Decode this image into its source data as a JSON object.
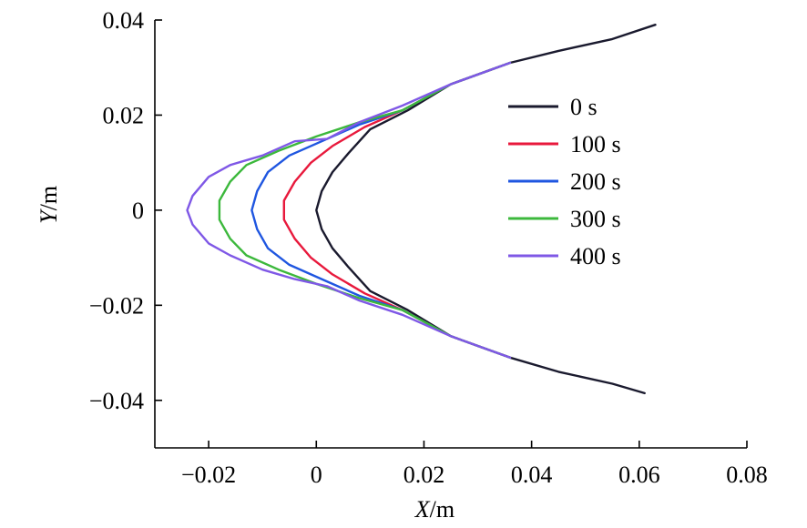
{
  "chart_data": {
    "type": "line",
    "xlabel": {
      "italic": "X",
      "unit": "/m"
    },
    "ylabel": {
      "italic": "Y",
      "unit": "/m"
    },
    "xlim": [
      -0.03,
      0.08
    ],
    "ylim": [
      -0.05,
      0.04
    ],
    "xticks": [
      {
        "value": -0.02,
        "label": "−0.02"
      },
      {
        "value": 0,
        "label": "0"
      },
      {
        "value": 0.02,
        "label": "0.02"
      },
      {
        "value": 0.04,
        "label": "0.04"
      },
      {
        "value": 0.06,
        "label": "0.06"
      },
      {
        "value": 0.08,
        "label": "0.08"
      }
    ],
    "yticks": [
      {
        "value": 0.04,
        "label": "0.04"
      },
      {
        "value": 0.02,
        "label": "0.02"
      },
      {
        "value": 0,
        "label": "0"
      },
      {
        "value": -0.02,
        "label": "−0.02"
      },
      {
        "value": -0.04,
        "label": "−0.04"
      }
    ],
    "grid": false,
    "legend_position": "right-middle",
    "series": [
      {
        "name": "0 s",
        "color": "#1a1a2e",
        "points": [
          [
            0.063,
            0.039
          ],
          [
            0.055,
            0.036
          ],
          [
            0.045,
            0.0335
          ],
          [
            0.036,
            0.031
          ],
          [
            0.025,
            0.0265
          ],
          [
            0.017,
            0.021
          ],
          [
            0.01,
            0.017
          ],
          [
            0.006,
            0.012
          ],
          [
            0.003,
            0.008
          ],
          [
            0.001,
            0.004
          ],
          [
            0.0,
            0.0
          ],
          [
            0.001,
            -0.004
          ],
          [
            0.003,
            -0.008
          ],
          [
            0.006,
            -0.012
          ],
          [
            0.01,
            -0.017
          ],
          [
            0.017,
            -0.021
          ],
          [
            0.025,
            -0.0265
          ],
          [
            0.036,
            -0.031
          ],
          [
            0.045,
            -0.034
          ],
          [
            0.055,
            -0.0365
          ],
          [
            0.061,
            -0.0385
          ]
        ]
      },
      {
        "name": "100 s",
        "color": "#e8193c",
        "points": [
          [
            0.036,
            0.031
          ],
          [
            0.025,
            0.0265
          ],
          [
            0.016,
            0.021
          ],
          [
            0.009,
            0.0175
          ],
          [
            0.003,
            0.0135
          ],
          [
            -0.001,
            0.01
          ],
          [
            -0.004,
            0.006
          ],
          [
            -0.006,
            0.002
          ],
          [
            -0.006,
            -0.002
          ],
          [
            -0.004,
            -0.006
          ],
          [
            -0.001,
            -0.01
          ],
          [
            0.003,
            -0.0135
          ],
          [
            0.009,
            -0.0175
          ],
          [
            0.016,
            -0.021
          ],
          [
            0.025,
            -0.0265
          ],
          [
            0.036,
            -0.031
          ]
        ]
      },
      {
        "name": "200 s",
        "color": "#1f56e0",
        "points": [
          [
            0.036,
            0.031
          ],
          [
            0.025,
            0.0265
          ],
          [
            0.016,
            0.021
          ],
          [
            0.008,
            0.018
          ],
          [
            0.001,
            0.0145
          ],
          [
            -0.005,
            0.0115
          ],
          [
            -0.009,
            0.008
          ],
          [
            -0.011,
            0.004
          ],
          [
            -0.012,
            0.0
          ],
          [
            -0.011,
            -0.004
          ],
          [
            -0.009,
            -0.008
          ],
          [
            -0.005,
            -0.0115
          ],
          [
            0.001,
            -0.0145
          ],
          [
            0.008,
            -0.018
          ],
          [
            0.016,
            -0.021
          ],
          [
            0.025,
            -0.0265
          ],
          [
            0.036,
            -0.031
          ]
        ]
      },
      {
        "name": "300 s",
        "color": "#3cb83c",
        "points": [
          [
            0.036,
            0.031
          ],
          [
            0.025,
            0.0265
          ],
          [
            0.016,
            0.021
          ],
          [
            0.008,
            0.0185
          ],
          [
            0.0,
            0.0155
          ],
          [
            -0.007,
            0.0125
          ],
          [
            -0.013,
            0.0095
          ],
          [
            -0.016,
            0.006
          ],
          [
            -0.018,
            0.002
          ],
          [
            -0.018,
            -0.002
          ],
          [
            -0.016,
            -0.006
          ],
          [
            -0.013,
            -0.0095
          ],
          [
            -0.007,
            -0.0125
          ],
          [
            0.0,
            -0.0155
          ],
          [
            0.008,
            -0.0185
          ],
          [
            0.016,
            -0.021
          ],
          [
            0.025,
            -0.0265
          ],
          [
            0.036,
            -0.031
          ]
        ]
      },
      {
        "name": "400 s",
        "color": "#7f58e6",
        "points": [
          [
            0.036,
            0.031
          ],
          [
            0.025,
            0.0265
          ],
          [
            0.016,
            0.022
          ],
          [
            0.008,
            0.0185
          ],
          [
            0.002,
            0.015
          ],
          [
            -0.004,
            0.0145
          ],
          [
            -0.01,
            0.0115
          ],
          [
            -0.016,
            0.0095
          ],
          [
            -0.02,
            0.007
          ],
          [
            -0.023,
            0.003
          ],
          [
            -0.024,
            0.0
          ],
          [
            -0.023,
            -0.003
          ],
          [
            -0.02,
            -0.007
          ],
          [
            -0.016,
            -0.0095
          ],
          [
            -0.01,
            -0.0125
          ],
          [
            -0.004,
            -0.0145
          ],
          [
            0.002,
            -0.016
          ],
          [
            0.008,
            -0.019
          ],
          [
            0.016,
            -0.022
          ],
          [
            0.025,
            -0.0265
          ],
          [
            0.036,
            -0.031
          ]
        ]
      }
    ]
  }
}
